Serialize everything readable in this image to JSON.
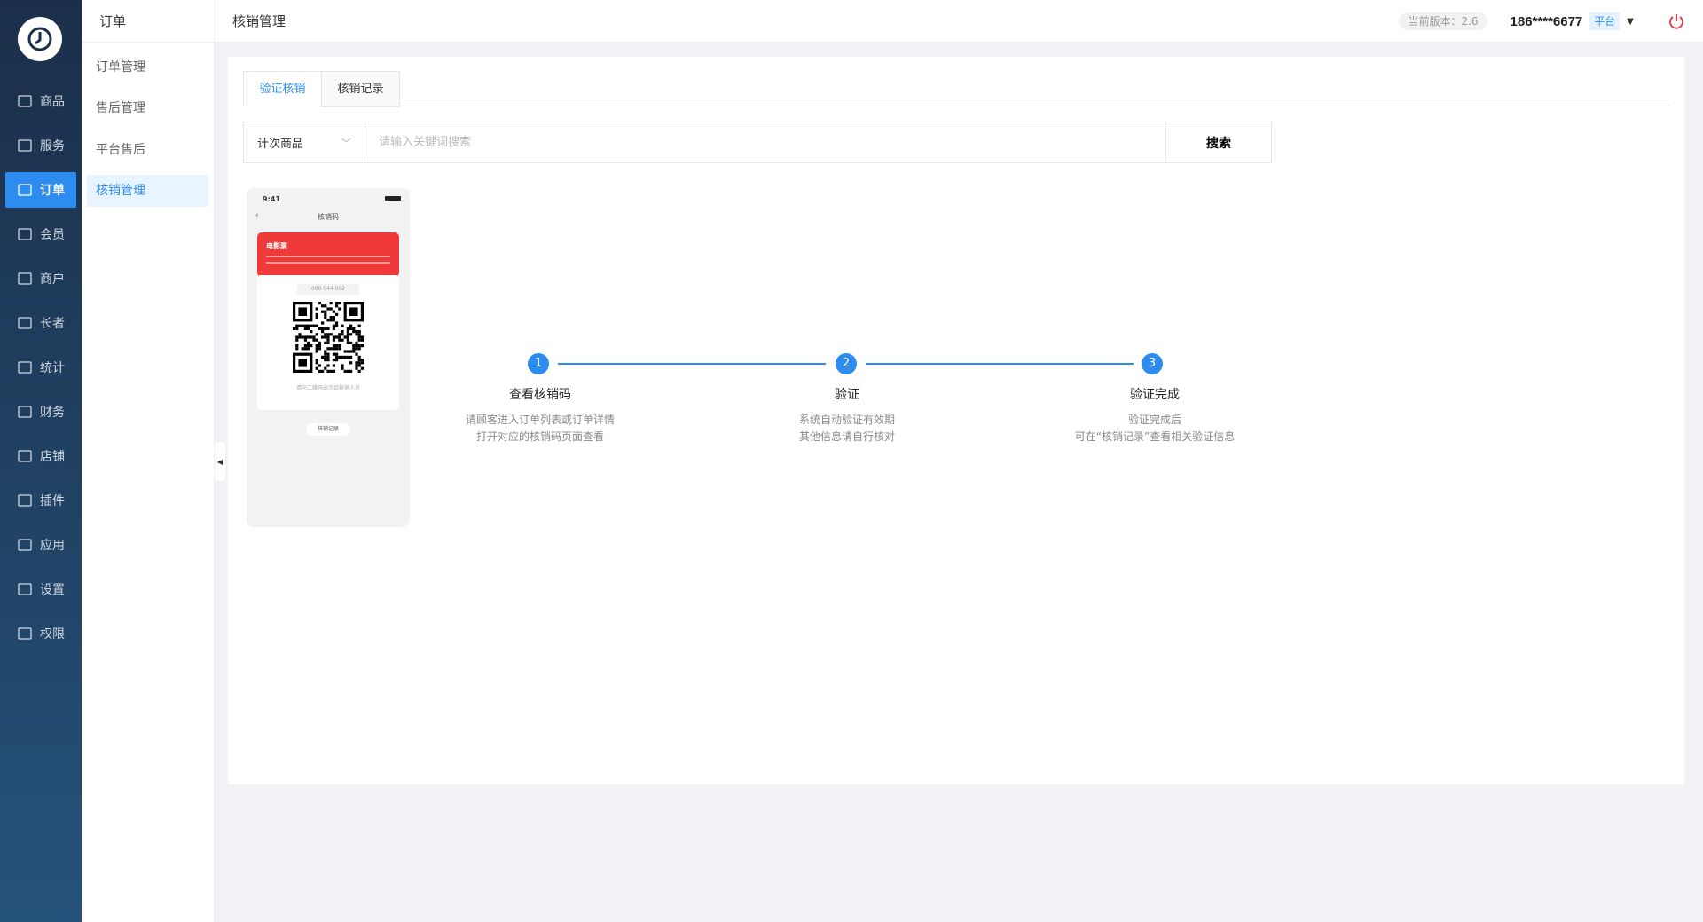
{
  "nav": {
    "items": [
      {
        "label": "商品",
        "icon": "mail-icon"
      },
      {
        "label": "服务",
        "icon": "home-icon"
      },
      {
        "label": "订单",
        "icon": "order-icon",
        "active": true
      },
      {
        "label": "会员",
        "icon": "user-icon"
      },
      {
        "label": "商户",
        "icon": "store-icon"
      },
      {
        "label": "长者",
        "icon": "elder-icon"
      },
      {
        "label": "统计",
        "icon": "chart-icon"
      },
      {
        "label": "财务",
        "icon": "finance-icon"
      },
      {
        "label": "店铺",
        "icon": "shop-icon"
      },
      {
        "label": "插件",
        "icon": "grid-icon"
      },
      {
        "label": "应用",
        "icon": "link-icon"
      },
      {
        "label": "设置",
        "icon": "settings-icon"
      },
      {
        "label": "权限",
        "icon": "lock-icon"
      }
    ]
  },
  "sub": {
    "title": "订单",
    "items": [
      {
        "label": "订单管理"
      },
      {
        "label": "售后管理"
      },
      {
        "label": "平台售后"
      },
      {
        "label": "核销管理",
        "active": true
      }
    ]
  },
  "header": {
    "title": "核销管理",
    "version": "当前版本：2.6",
    "user": "186****6677",
    "tag": "平台"
  },
  "tabs": [
    {
      "label": "验证核销",
      "active": true
    },
    {
      "label": "核销记录"
    }
  ],
  "search": {
    "select": "计次商品",
    "placeholder": "请输入关键词搜索",
    "button": "搜索"
  },
  "phone": {
    "time": "9:41",
    "title": "核销码",
    "ticket": "电影票",
    "code": "000 044 002",
    "hint": "请向二维码出示给核销人员",
    "record": "核销记录"
  },
  "steps": [
    {
      "num": "1",
      "title": "查看核销码",
      "desc1": "请顾客进入订单列表或订单详情",
      "desc2": "打开对应的核销码页面查看"
    },
    {
      "num": "2",
      "title": "验证",
      "desc1": "系统自动验证有效期",
      "desc2": "其他信息请自行核对"
    },
    {
      "num": "3",
      "title": "验证完成",
      "desc1": "验证完成后",
      "desc2": "可在“核销记录”查看相关验证信息"
    }
  ],
  "colors": {
    "accent": "#2d8cf0",
    "nav_bg": "#1b2f4a",
    "ticket": "#f03a3a",
    "power": "#e0434b"
  }
}
